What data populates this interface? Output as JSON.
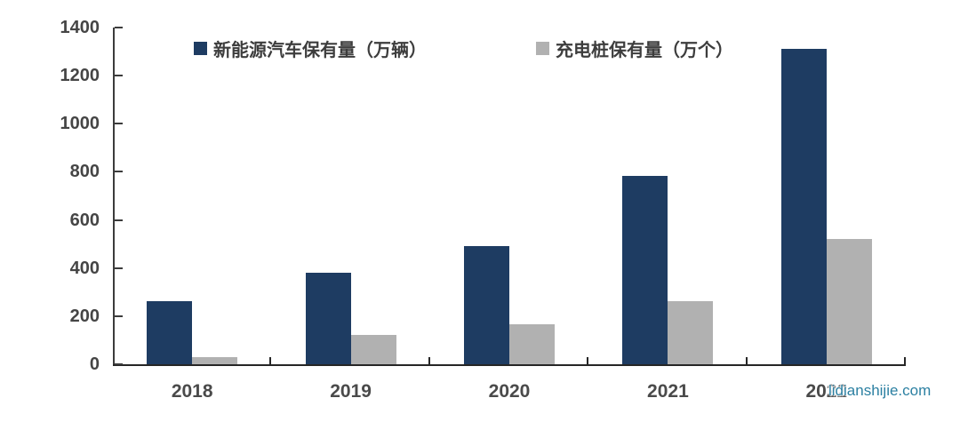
{
  "watermark": "lidianshijie.com",
  "colors": {
    "series1": "#1e3c62",
    "series2": "#b1b1b1",
    "axis": "#3c3c3c",
    "label": "#454545",
    "watermark": "#2c80a2",
    "background": "#ffffff"
  },
  "chart_data": {
    "type": "bar",
    "title": "",
    "xlabel": "",
    "ylabel": "",
    "categories": [
      "2018",
      "2019",
      "2020",
      "2021",
      "2022"
    ],
    "series": [
      {
        "name": "新能源汽车保有量（万辆）",
        "color": "#1e3c62",
        "values": [
          261,
          381,
          492,
          784,
          1310
        ]
      },
      {
        "name": "充电桩保有量（万个）",
        "color": "#b1b1b1",
        "values": [
          30,
          121,
          168,
          262,
          521
        ]
      }
    ],
    "ylim": [
      0,
      1400
    ],
    "yticks": [
      0,
      200,
      400,
      600,
      800,
      1000,
      1200,
      1400
    ],
    "grid": false,
    "legend_position": "top",
    "tick_style": "inside"
  }
}
